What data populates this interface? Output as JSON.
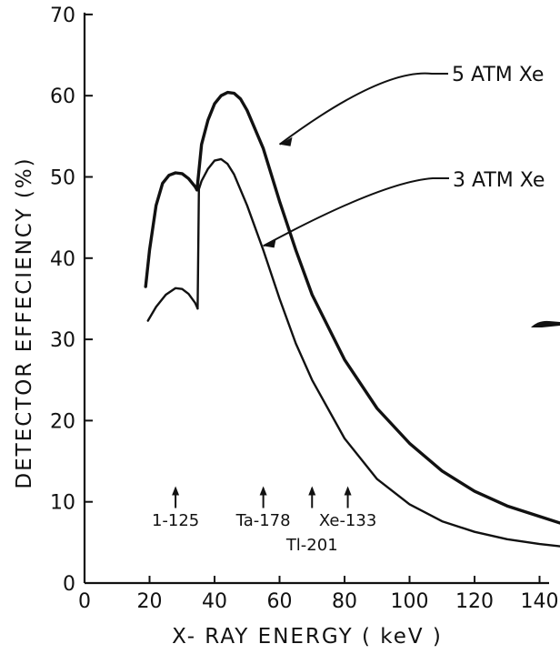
{
  "chart_data": {
    "type": "line",
    "title": "",
    "xlabel": "X- RAY   ENERGY  ( keV )",
    "ylabel": "DETECTOR  EFFECIENCY  (%)",
    "xlim": [
      0,
      148
    ],
    "ylim": [
      0,
      70
    ],
    "x_ticks": [
      0,
      20,
      40,
      60,
      80,
      100,
      120,
      140
    ],
    "y_ticks": [
      0,
      10,
      20,
      30,
      40,
      50,
      60,
      70
    ],
    "grid": false,
    "series": [
      {
        "name": "5 ATM Xe",
        "segments": [
          [
            [
              18.8,
              36.5
            ],
            [
              20,
              41
            ],
            [
              22,
              46.5
            ],
            [
              24,
              49.2
            ],
            [
              26,
              50.2
            ],
            [
              28,
              50.5
            ],
            [
              30,
              50.4
            ],
            [
              32,
              49.8
            ],
            [
              34,
              48.8
            ],
            [
              34.6,
              48.4
            ]
          ],
          [
            [
              34.6,
              48.4
            ],
            [
              36,
              54
            ],
            [
              38,
              57
            ],
            [
              40,
              59
            ],
            [
              42,
              60
            ],
            [
              44,
              60.4
            ],
            [
              46,
              60.3
            ],
            [
              48,
              59.6
            ],
            [
              50,
              58.2
            ],
            [
              55,
              53.5
            ],
            [
              60,
              47
            ],
            [
              65,
              41
            ],
            [
              70,
              35.5
            ],
            [
              80,
              27.5
            ],
            [
              90,
              21.5
            ],
            [
              100,
              17.2
            ],
            [
              110,
              13.8
            ],
            [
              120,
              11.3
            ],
            [
              130,
              9.5
            ],
            [
              140,
              8.2
            ],
            [
              147,
              7.3
            ]
          ]
        ]
      },
      {
        "name": "3 ATM Xe",
        "segments": [
          [
            [
              19.5,
              32.3
            ],
            [
              22,
              34
            ],
            [
              25,
              35.5
            ],
            [
              28,
              36.3
            ],
            [
              30,
              36.2
            ],
            [
              32,
              35.6
            ],
            [
              34,
              34.5
            ],
            [
              34.8,
              33.8
            ]
          ],
          [
            [
              34.8,
              33.8
            ],
            [
              35.2,
              48.5
            ],
            [
              36,
              49.5
            ],
            [
              38,
              51
            ],
            [
              40,
              52
            ],
            [
              42,
              52.2
            ],
            [
              44,
              51.6
            ],
            [
              46,
              50.3
            ],
            [
              50,
              46.5
            ],
            [
              55,
              41
            ],
            [
              60,
              35
            ],
            [
              65,
              29.5
            ],
            [
              70,
              25
            ],
            [
              80,
              17.8
            ],
            [
              90,
              12.8
            ],
            [
              100,
              9.7
            ],
            [
              110,
              7.6
            ],
            [
              120,
              6.3
            ],
            [
              130,
              5.4
            ],
            [
              140,
              4.8
            ],
            [
              147,
              4.5
            ]
          ]
        ]
      }
    ],
    "annotations": [
      {
        "text": "1-125",
        "x": 28,
        "arrow_tip": 11.7
      },
      {
        "text": "Ta-178",
        "x": 55,
        "arrow_tip": 11.7
      },
      {
        "text": "Tl-201",
        "x": 70,
        "arrow_tip": 11.7
      },
      {
        "text": "Xe-133",
        "x": 81,
        "arrow_tip": 11.7
      }
    ]
  }
}
